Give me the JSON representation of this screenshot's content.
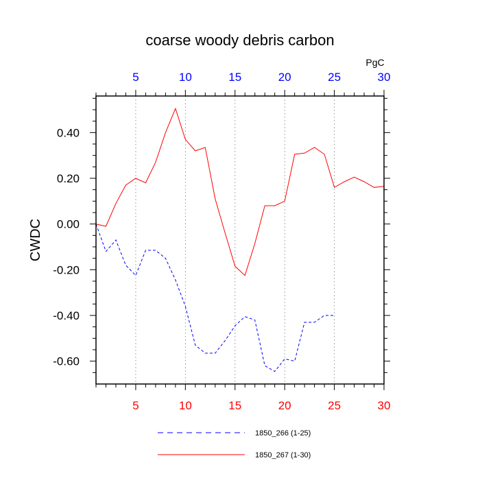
{
  "chart_data": {
    "type": "line",
    "title": "coarse woody debris carbon",
    "ylabel": "CWDC",
    "xlabel": "",
    "units": "PgC",
    "xlim": [
      1,
      30
    ],
    "ylim": [
      -0.7,
      0.56
    ],
    "x_ticks_bottom": [
      5,
      10,
      15,
      20,
      25,
      30
    ],
    "x_ticks_top": [
      5,
      10,
      15,
      20,
      25,
      30
    ],
    "y_ticks": [
      {
        "value": 0.4,
        "label": "0.40"
      },
      {
        "value": 0.2,
        "label": "0.20"
      },
      {
        "value": 0.0,
        "label": "0.00"
      },
      {
        "value": -0.2,
        "label": "-0.20"
      },
      {
        "value": -0.4,
        "label": "-0.40"
      },
      {
        "value": -0.6,
        "label": "-0.60"
      }
    ],
    "grid": "vertical dotted at major x ticks",
    "bottom_tick_color": "#ff0000",
    "top_tick_color": "#0000ff",
    "legend_position": "bottom",
    "series": [
      {
        "name": "1850_266 (1-25)",
        "color": "#0000ff",
        "style": "dashed",
        "x": [
          1,
          2,
          3,
          4,
          5,
          6,
          7,
          8,
          9,
          10,
          11,
          12,
          13,
          14,
          15,
          16,
          17,
          18,
          19,
          20,
          21,
          22,
          23,
          24,
          25
        ],
        "y": [
          0.0,
          -0.12,
          -0.07,
          -0.18,
          -0.225,
          -0.115,
          -0.115,
          -0.15,
          -0.245,
          -0.36,
          -0.53,
          -0.565,
          -0.565,
          -0.51,
          -0.445,
          -0.405,
          -0.42,
          -0.62,
          -0.645,
          -0.59,
          -0.6,
          -0.43,
          -0.43,
          -0.4,
          -0.4
        ]
      },
      {
        "name": "1850_267 (1-30)",
        "color": "#ff0000",
        "style": "solid",
        "x": [
          1,
          2,
          3,
          4,
          5,
          6,
          7,
          8,
          9,
          10,
          11,
          12,
          13,
          14,
          15,
          16,
          17,
          18,
          19,
          20,
          21,
          22,
          23,
          24,
          25,
          26,
          27,
          28,
          29,
          30
        ],
        "y": [
          0.0,
          -0.01,
          0.09,
          0.17,
          0.2,
          0.18,
          0.27,
          0.4,
          0.505,
          0.37,
          0.32,
          0.335,
          0.11,
          -0.04,
          -0.185,
          -0.225,
          -0.085,
          0.08,
          0.08,
          0.1,
          0.305,
          0.31,
          0.335,
          0.305,
          0.16,
          0.185,
          0.205,
          0.185,
          0.16,
          0.165
        ]
      }
    ]
  }
}
